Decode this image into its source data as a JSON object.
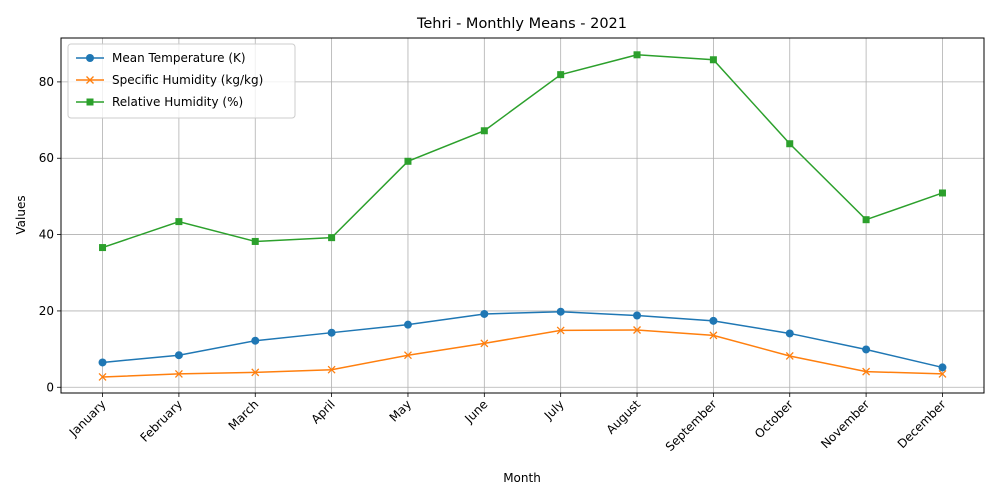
{
  "chart_data": {
    "type": "line",
    "title": "Tehri - Monthly Means - 2021",
    "xlabel": "Month",
    "ylabel": "Values",
    "categories": [
      "January",
      "February",
      "March",
      "April",
      "May",
      "June",
      "July",
      "August",
      "September",
      "October",
      "November",
      "December"
    ],
    "ylim": [
      -1.5,
      91.5
    ],
    "yticks": [
      0,
      20,
      40,
      60,
      80
    ],
    "grid": true,
    "legend_position": "top-left",
    "series": [
      {
        "name": "Mean Temperature (K)",
        "color": "#1f77b4",
        "marker": "circle",
        "values": [
          6.5,
          8.4,
          12.2,
          14.3,
          16.4,
          19.2,
          19.8,
          18.8,
          17.4,
          14.1,
          9.9,
          5.2
        ]
      },
      {
        "name": "Specific Humidity (kg/kg)",
        "color": "#ff7f0e",
        "marker": "x",
        "values": [
          2.7,
          3.5,
          3.9,
          4.6,
          8.4,
          11.5,
          14.9,
          15.0,
          13.6,
          8.2,
          4.1,
          3.5
        ]
      },
      {
        "name": "Relative Humidity (%)",
        "color": "#2ca02c",
        "marker": "square",
        "values": [
          36.6,
          43.4,
          38.2,
          39.2,
          59.2,
          67.2,
          81.9,
          87.1,
          85.8,
          63.8,
          43.9,
          50.9
        ]
      }
    ]
  }
}
